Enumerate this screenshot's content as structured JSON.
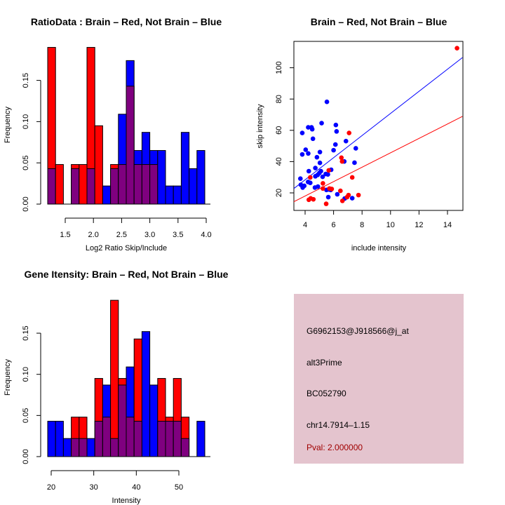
{
  "colors": {
    "brain": "#ff0000",
    "not_brain": "#0000ff",
    "overlap": "#7f007f",
    "pval": "#a00000",
    "panel_bg": "#e8c4cc"
  },
  "chart_data": [
    {
      "id": "ratio-hist",
      "type": "bar",
      "title": "RatioData : Brain – Red, Not Brain – Blue",
      "xlabel": "Log2 Ratio Skip/Include",
      "ylabel": "Frequency",
      "xlim": [
        1.2,
        3.97
      ],
      "ylim": [
        0,
        0.19
      ],
      "xticks": [
        1.5,
        2.0,
        2.5,
        3.0,
        3.5,
        4.0
      ],
      "xtick_labels": [
        "1.5",
        "2.0",
        "2.5",
        "3.0",
        "3.5",
        "4.0"
      ],
      "yticks": [
        0.0,
        0.05,
        0.1,
        0.15
      ],
      "ytick_labels": [
        "0.00",
        "0.05",
        "0.10",
        "0.15"
      ],
      "bin_start": 1.2,
      "bin_width": 0.1385,
      "series": [
        {
          "name": "Brain",
          "color": "red",
          "values": [
            0.19,
            0.048,
            0,
            0.048,
            0.048,
            0.19,
            0.095,
            0,
            0.048,
            0.048,
            0.143,
            0.048,
            0.048,
            0.048,
            0,
            0,
            0,
            0,
            0,
            0
          ]
        },
        {
          "name": "Not Brain",
          "color": "blue",
          "values": [
            0.043,
            0,
            0,
            0.043,
            0,
            0.043,
            0,
            0.022,
            0.043,
            0.109,
            0.174,
            0.065,
            0.087,
            0.065,
            0.065,
            0.022,
            0.022,
            0.087,
            0.043,
            0.065
          ]
        }
      ]
    },
    {
      "id": "intensity-scatter",
      "type": "scatter",
      "title": "Brain – Red, Not Brain – Blue",
      "xlabel": "include intensity",
      "ylabel": "skip intensity",
      "xlim": [
        3.2,
        15.05
      ],
      "ylim": [
        8.5,
        116
      ],
      "xticks": [
        4,
        6,
        8,
        10,
        12,
        14
      ],
      "xtick_labels": [
        "4",
        "6",
        "8",
        "10",
        "12",
        "14"
      ],
      "yticks": [
        20,
        40,
        60,
        80,
        100
      ],
      "ytick_labels": [
        "20",
        "40",
        "60",
        "80",
        "100"
      ],
      "series": [
        {
          "name": "Brain",
          "color": "red",
          "points": [
            [
              14.67,
              112.5
            ],
            [
              7.09,
              58.3
            ],
            [
              6.55,
              42.5
            ],
            [
              6.6,
              40.1
            ],
            [
              5.66,
              34.4
            ],
            [
              4.36,
              29.9
            ],
            [
              5.25,
              26.1
            ],
            [
              5.25,
              22.8
            ],
            [
              7.31,
              29.9
            ],
            [
              5.71,
              22.8
            ],
            [
              5.87,
              22.5
            ],
            [
              6.48,
              21.3
            ],
            [
              7.05,
              18.6
            ],
            [
              6.95,
              17.3
            ],
            [
              6.62,
              14.9
            ],
            [
              7.75,
              18.6
            ],
            [
              4.26,
              15.6
            ],
            [
              4.39,
              16.5
            ],
            [
              4.58,
              15.9
            ],
            [
              5.48,
              13.0
            ]
          ],
          "fit_line": [
            [
              3.2,
              14.3
            ],
            [
              15.05,
              68.9
            ]
          ]
        },
        {
          "name": "Not Brain",
          "color": "blue",
          "points": [
            [
              3.67,
              29.1
            ],
            [
              3.7,
              25.2
            ],
            [
              3.83,
              23.4
            ],
            [
              3.94,
              24.5
            ],
            [
              3.8,
              58.3
            ],
            [
              3.8,
              44.6
            ],
            [
              4.04,
              47.6
            ],
            [
              4.22,
              45.2
            ],
            [
              4.22,
              61.9
            ],
            [
              4.45,
              61.9
            ],
            [
              4.5,
              60.7
            ],
            [
              4.55,
              54.6
            ],
            [
              5.16,
              64.6
            ],
            [
              5.53,
              78.2
            ],
            [
              4.26,
              33.9
            ],
            [
              4.21,
              27.0
            ],
            [
              4.36,
              26.4
            ],
            [
              4.72,
              35.9
            ],
            [
              4.83,
              42.8
            ],
            [
              5.04,
              46.1
            ],
            [
              5.04,
              39.2
            ],
            [
              5.11,
              33.9
            ],
            [
              4.72,
              30.6
            ],
            [
              4.88,
              31.5
            ],
            [
              5.0,
              32.7
            ],
            [
              4.69,
              23.4
            ],
            [
              4.9,
              24.0
            ],
            [
              5.23,
              30.3
            ],
            [
              5.45,
              32.1
            ],
            [
              5.6,
              31.8
            ],
            [
              5.83,
              34.8
            ],
            [
              5.5,
              21.9
            ],
            [
              5.66,
              22.2
            ],
            [
              5.8,
              21.9
            ],
            [
              5.63,
              17.3
            ],
            [
              6.0,
              47.3
            ],
            [
              6.13,
              50.9
            ],
            [
              6.16,
              63.4
            ],
            [
              6.21,
              59.3
            ],
            [
              6.26,
              19.1
            ],
            [
              6.75,
              40.1
            ],
            [
              6.87,
              53.1
            ],
            [
              6.78,
              16.4
            ],
            [
              7.31,
              16.6
            ],
            [
              7.47,
              39.3
            ],
            [
              7.56,
              48.5
            ]
          ],
          "fit_line": [
            [
              3.2,
              22.7
            ],
            [
              15.05,
              106.5
            ]
          ]
        }
      ]
    },
    {
      "id": "gene-intensity-hist",
      "type": "bar",
      "title": "Gene Itensity: Brain – Red, Not Brain – Blue",
      "xlabel": "Intensity",
      "ylabel": "Frequency",
      "xlim": [
        19.45,
        56.25
      ],
      "ylim": [
        0,
        0.19
      ],
      "xticks": [
        20,
        30,
        40,
        50
      ],
      "xtick_labels": [
        "20",
        "30",
        "40",
        "50"
      ],
      "yticks": [
        0.0,
        0.05,
        0.1,
        0.15
      ],
      "ytick_labels": [
        "0.00",
        "0.05",
        "0.10",
        "0.15"
      ],
      "bin_start": 19.45,
      "bin_width": 1.84,
      "series": [
        {
          "name": "Brain",
          "color": "red",
          "values": [
            0,
            0,
            0,
            0.048,
            0.048,
            0,
            0.095,
            0.048,
            0.19,
            0.095,
            0.048,
            0.143,
            0,
            0,
            0.095,
            0.048,
            0.095,
            0.048,
            0,
            0
          ]
        },
        {
          "name": "Not Brain",
          "color": "blue",
          "values": [
            0.043,
            0.043,
            0.022,
            0.022,
            0.022,
            0.022,
            0.043,
            0.087,
            0.022,
            0.087,
            0.109,
            0.043,
            0.152,
            0.087,
            0.043,
            0.043,
            0.043,
            0.022,
            0,
            0.043
          ]
        }
      ]
    }
  ],
  "info_panel": {
    "probe_id": "G6962153@J918566@j_at",
    "event_type": "alt3Prime",
    "accession": "BC052790",
    "location": "chr14.7914–1.15",
    "pval": "Pval: 2.000000"
  }
}
